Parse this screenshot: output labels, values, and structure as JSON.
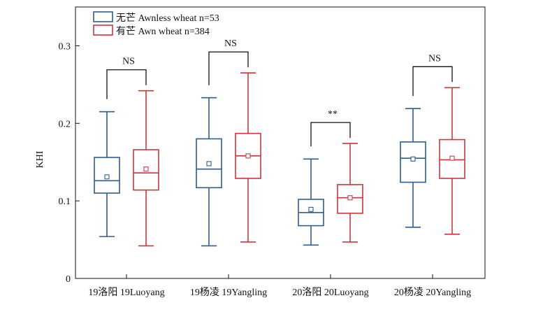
{
  "chart_data": {
    "type": "box",
    "ylabel": "KHI",
    "ylim": [
      0,
      0.35
    ],
    "yticks": [
      0,
      0.1,
      0.2,
      0.3
    ],
    "ytick_labels": [
      "0",
      "0.1",
      "0.2",
      "0.3"
    ],
    "categories": [
      "19洛阳 19Luoyang",
      "19杨凌 19Yangling",
      "20洛阳 20Luoyang",
      "20杨凌 20Yangling"
    ],
    "series": [
      {
        "name": "无芒 Awnless wheat n=53",
        "color": "#2f5d8c",
        "boxes": [
          {
            "min": 0.054,
            "q1": 0.11,
            "median": 0.126,
            "q3": 0.156,
            "max": 0.215,
            "mean": 0.131
          },
          {
            "min": 0.042,
            "q1": 0.117,
            "median": 0.141,
            "q3": 0.18,
            "max": 0.233,
            "mean": 0.148
          },
          {
            "min": 0.043,
            "q1": 0.068,
            "median": 0.085,
            "q3": 0.102,
            "max": 0.154,
            "mean": 0.089
          },
          {
            "min": 0.066,
            "q1": 0.124,
            "median": 0.155,
            "q3": 0.176,
            "max": 0.219,
            "mean": 0.154
          }
        ]
      },
      {
        "name": "有芒 Awn wheat n=384",
        "color": "#d0353a",
        "boxes": [
          {
            "min": 0.042,
            "q1": 0.114,
            "median": 0.136,
            "q3": 0.166,
            "max": 0.242,
            "mean": 0.141
          },
          {
            "min": 0.047,
            "q1": 0.129,
            "median": 0.158,
            "q3": 0.187,
            "max": 0.265,
            "mean": 0.158
          },
          {
            "min": 0.047,
            "q1": 0.084,
            "median": 0.104,
            "q3": 0.121,
            "max": 0.174,
            "mean": 0.104
          },
          {
            "min": 0.057,
            "q1": 0.129,
            "median": 0.153,
            "q3": 0.179,
            "max": 0.246,
            "mean": 0.155
          }
        ]
      }
    ],
    "significance": [
      "NS",
      "NS",
      "**",
      "NS"
    ],
    "legend_position": "top-left",
    "grid": false
  }
}
